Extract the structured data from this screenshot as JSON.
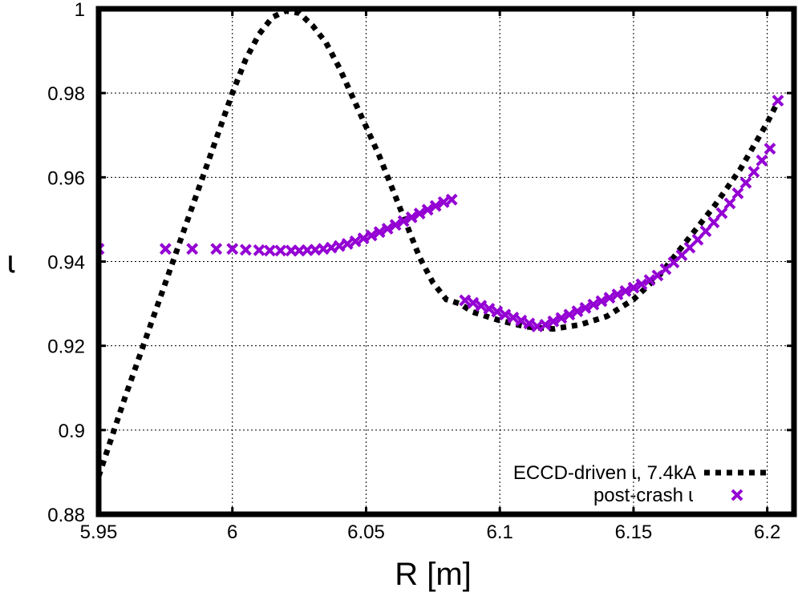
{
  "chart_data": {
    "type": "line",
    "title": "",
    "xlabel": "R [m]",
    "ylabel": "ɩ",
    "xlim": [
      5.95,
      6.21
    ],
    "ylim": [
      0.88,
      1.0
    ],
    "grid": true,
    "legend_position": "bottom-right",
    "xticks": [
      5.95,
      6.0,
      6.05,
      6.1,
      6.15,
      6.2
    ],
    "xtick_labels": [
      "5.95",
      "6",
      "6.05",
      "6.1",
      "6.15",
      "6.2"
    ],
    "yticks": [
      0.88,
      0.9,
      0.92,
      0.94,
      0.96,
      0.98,
      1.0
    ],
    "ytick_labels": [
      "0.88",
      "0.9",
      "0.92",
      "0.94",
      "0.96",
      "0.98",
      "1"
    ],
    "series": [
      {
        "name": "ECCD-driven ɩ, 7.4kA",
        "style": "dotted-line",
        "color": "#000000",
        "x": [
          5.95,
          5.96,
          5.97,
          5.98,
          5.99,
          6.0,
          6.005,
          6.01,
          6.015,
          6.02,
          6.025,
          6.03,
          6.035,
          6.04,
          6.045,
          6.05,
          6.055,
          6.06,
          6.065,
          6.07,
          6.075,
          6.08,
          6.085,
          6.09,
          6.1,
          6.11,
          6.12,
          6.13,
          6.14,
          6.15,
          6.16,
          6.17,
          6.18,
          6.19,
          6.2,
          6.204
        ],
        "y": [
          0.889,
          0.908,
          0.926,
          0.944,
          0.962,
          0.98,
          0.988,
          0.994,
          0.998,
          0.9995,
          0.999,
          0.996,
          0.992,
          0.986,
          0.979,
          0.972,
          0.965,
          0.957,
          0.949,
          0.941,
          0.935,
          0.931,
          0.93,
          0.928,
          0.926,
          0.9245,
          0.924,
          0.925,
          0.927,
          0.931,
          0.937,
          0.945,
          0.953,
          0.962,
          0.973,
          0.978
        ]
      },
      {
        "name": "post-crash ɩ",
        "style": "markers-x",
        "color": "#9400d3",
        "x": [
          5.95,
          5.975,
          5.985,
          5.994,
          6.0,
          6.005,
          6.01,
          6.014,
          6.018,
          6.022,
          6.025,
          6.028,
          6.031,
          6.034,
          6.037,
          6.04,
          6.043,
          6.046,
          6.049,
          6.052,
          6.055,
          6.058,
          6.061,
          6.064,
          6.067,
          6.07,
          6.073,
          6.076,
          6.079,
          6.082,
          6.087,
          6.09,
          6.093,
          6.096,
          6.099,
          6.102,
          6.105,
          6.108,
          6.111,
          6.114,
          6.117,
          6.12,
          6.123,
          6.126,
          6.129,
          6.132,
          6.135,
          6.138,
          6.141,
          6.144,
          6.147,
          6.15,
          6.153,
          6.156,
          6.159,
          6.162,
          6.165,
          6.168,
          6.171,
          6.174,
          6.177,
          6.18,
          6.183,
          6.186,
          6.189,
          6.192,
          6.195,
          6.198,
          6.201,
          6.204
        ],
        "y": [
          0.943,
          0.943,
          0.943,
          0.943,
          0.943,
          0.9428,
          0.9427,
          0.9426,
          0.9426,
          0.9426,
          0.9426,
          0.9427,
          0.9428,
          0.943,
          0.9433,
          0.9437,
          0.9442,
          0.9448,
          0.9455,
          0.9462,
          0.947,
          0.9478,
          0.9487,
          0.9496,
          0.9505,
          0.9514,
          0.9523,
          0.9532,
          0.9541,
          0.9547,
          0.9308,
          0.9302,
          0.9295,
          0.9288,
          0.9281,
          0.9274,
          0.9267,
          0.926,
          0.9253,
          0.9246,
          0.925,
          0.9258,
          0.9266,
          0.9274,
          0.9282,
          0.929,
          0.9298,
          0.9306,
          0.9314,
          0.9322,
          0.933,
          0.9338,
          0.9346,
          0.9356,
          0.9367,
          0.9382,
          0.9398,
          0.9415,
          0.9433,
          0.9452,
          0.9472,
          0.9493,
          0.9515,
          0.9538,
          0.9562,
          0.9587,
          0.9613,
          0.964,
          0.9668,
          0.9782
        ]
      }
    ]
  }
}
